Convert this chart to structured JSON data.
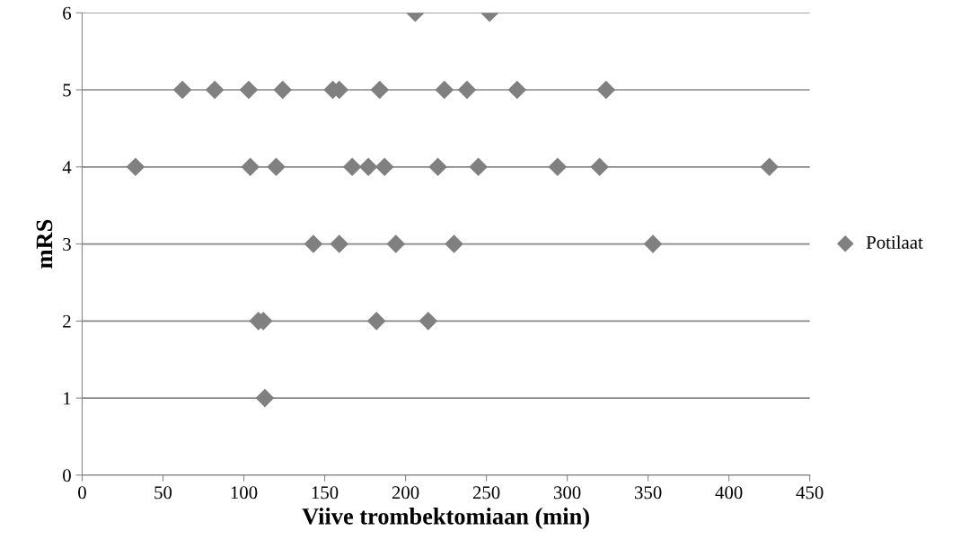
{
  "chart_data": {
    "type": "scatter",
    "xlabel": "Viive trombektomiaan (min)",
    "ylabel": "mRS",
    "series": [
      {
        "name": "Potilaat",
        "color": "#808080",
        "x": [
          206,
          252,
          62,
          82,
          103,
          124,
          155,
          159,
          184,
          224,
          238,
          269,
          324,
          33,
          104,
          120,
          167,
          177,
          187,
          220,
          245,
          294,
          320,
          425,
          143,
          159,
          194,
          230,
          353,
          109,
          112,
          182,
          214,
          113
        ],
        "values": [
          6,
          6,
          5,
          5,
          5,
          5,
          5,
          5,
          5,
          5,
          5,
          5,
          5,
          4,
          4,
          4,
          4,
          4,
          4,
          4,
          4,
          4,
          4,
          4,
          3,
          3,
          3,
          3,
          3,
          2,
          2,
          2,
          2,
          1
        ]
      }
    ],
    "xlim": [
      0,
      450
    ],
    "xticks": [
      0,
      50,
      100,
      150,
      200,
      250,
      300,
      350,
      400,
      450
    ],
    "ylim": [
      0,
      6
    ],
    "yticks": [
      0,
      1,
      2,
      3,
      4,
      5,
      6
    ],
    "grid": "y",
    "legend": "right",
    "marker": "diamond"
  }
}
